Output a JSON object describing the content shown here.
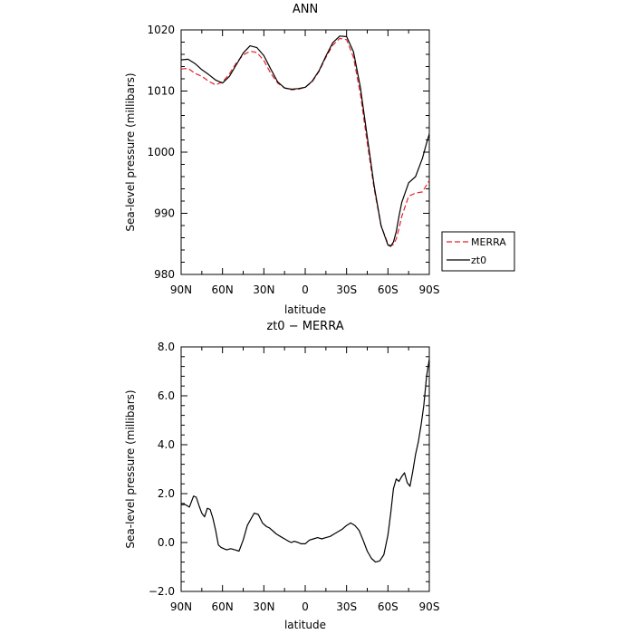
{
  "chart_data": [
    {
      "type": "line",
      "title": "ANN",
      "xlabel": "latitude",
      "ylabel": "Sea-level pressure (millibars)",
      "xlim": [
        90,
        -90
      ],
      "ylim": [
        980,
        1020
      ],
      "x_tick_values": [
        90,
        60,
        30,
        0,
        -30,
        -60,
        -90
      ],
      "x_tick_labels": [
        "90N",
        "60N",
        "30N",
        "0",
        "30S",
        "60S",
        "90S"
      ],
      "y_tick_values": [
        980,
        990,
        1000,
        1010,
        1020
      ],
      "y_tick_labels": [
        "980",
        "990",
        "1000",
        "1010",
        "1020"
      ],
      "legend": "right",
      "series": [
        {
          "name": "MERRA",
          "color": "#e8202a",
          "dash": "dashed",
          "x": [
            90,
            85,
            80,
            75,
            70,
            65,
            60,
            55,
            50,
            45,
            40,
            35,
            30,
            25,
            20,
            15,
            10,
            5,
            0,
            -5,
            -10,
            -15,
            -20,
            -25,
            -30,
            -35,
            -40,
            -45,
            -50,
            -55,
            -60,
            -62,
            -64,
            -66,
            -68,
            -70,
            -75,
            -80,
            -85,
            -90
          ],
          "values": [
            1013.6,
            1013.7,
            1012.9,
            1012.4,
            1011.6,
            1011.0,
            1011.5,
            1012.8,
            1014.6,
            1015.9,
            1016.5,
            1016.3,
            1015.0,
            1012.9,
            1011.3,
            1010.5,
            1010.2,
            1010.3,
            1010.6,
            1011.5,
            1013.2,
            1015.5,
            1017.5,
            1018.6,
            1018.4,
            1015.5,
            1009.5,
            1001.5,
            994.0,
            988.0,
            985.0,
            984.7,
            984.9,
            985.8,
            987.5,
            989.5,
            992.8,
            993.3,
            993.5,
            995.4
          ]
        },
        {
          "name": "zt0",
          "color": "#000000",
          "dash": "solid",
          "x": [
            90,
            85,
            80,
            75,
            70,
            65,
            60,
            55,
            50,
            45,
            40,
            35,
            30,
            25,
            20,
            15,
            10,
            5,
            0,
            -5,
            -10,
            -15,
            -20,
            -25,
            -30,
            -35,
            -40,
            -45,
            -50,
            -55,
            -60,
            -62,
            -64,
            -66,
            -68,
            -70,
            -75,
            -80,
            -85,
            -88,
            -90
          ],
          "values": [
            1015.1,
            1015.2,
            1014.5,
            1013.5,
            1012.7,
            1011.8,
            1011.3,
            1012.4,
            1014.3,
            1016.2,
            1017.4,
            1017.1,
            1015.8,
            1013.6,
            1011.5,
            1010.5,
            1010.3,
            1010.4,
            1010.6,
            1011.6,
            1013.3,
            1015.7,
            1017.9,
            1019.0,
            1018.9,
            1016.4,
            1010.6,
            1002.5,
            994.5,
            988.0,
            984.8,
            984.6,
            985.3,
            987.0,
            989.5,
            991.8,
            995.0,
            996.0,
            999.0,
            1001.5,
            1003.0
          ]
        }
      ]
    },
    {
      "type": "line",
      "title": "zt0 − MERRA",
      "xlabel": "latitude",
      "ylabel": "Sea-level pressure (millibars)",
      "xlim": [
        90,
        -90
      ],
      "ylim": [
        -2,
        8
      ],
      "x_tick_values": [
        90,
        60,
        30,
        0,
        -30,
        -60,
        -90
      ],
      "x_tick_labels": [
        "90N",
        "60N",
        "30N",
        "0",
        "30S",
        "60S",
        "90S"
      ],
      "y_tick_values": [
        -2,
        0,
        2,
        4,
        6,
        8
      ],
      "y_tick_labels": [
        "−2.0",
        "0.0",
        "2.0",
        "4.0",
        "6.0",
        "8.0"
      ],
      "series": [
        {
          "color": "#000000",
          "dash": "solid",
          "x": [
            90,
            87,
            84,
            81,
            79,
            77,
            75,
            73,
            71,
            69,
            67,
            65,
            63,
            61,
            59,
            57,
            54,
            51,
            48,
            45,
            42,
            39,
            37,
            34,
            31,
            28,
            26,
            24,
            21,
            18,
            15,
            12,
            10,
            8,
            5,
            3,
            0,
            -3,
            -6,
            -9,
            -12,
            -15,
            -18,
            -21,
            -24,
            -27,
            -30,
            -33,
            -36,
            -39,
            -42,
            -45,
            -48,
            -51,
            -54,
            -57,
            -60,
            -62,
            -64,
            -66,
            -68,
            -70,
            -72,
            -74,
            -76,
            -78,
            -80,
            -82,
            -84,
            -86,
            -88,
            -90
          ],
          "values": [
            1.55,
            1.55,
            1.45,
            1.9,
            1.85,
            1.5,
            1.2,
            1.05,
            1.4,
            1.35,
            1.0,
            0.5,
            -0.1,
            -0.2,
            -0.25,
            -0.3,
            -0.25,
            -0.3,
            -0.35,
            0.1,
            0.7,
            1.0,
            1.2,
            1.15,
            0.8,
            0.65,
            0.6,
            0.5,
            0.35,
            0.25,
            0.15,
            0.05,
            0.0,
            0.05,
            0.0,
            -0.05,
            -0.05,
            0.1,
            0.15,
            0.2,
            0.15,
            0.2,
            0.25,
            0.35,
            0.45,
            0.55,
            0.7,
            0.8,
            0.7,
            0.5,
            0.1,
            -0.35,
            -0.65,
            -0.8,
            -0.75,
            -0.5,
            0.3,
            1.2,
            2.2,
            2.6,
            2.5,
            2.7,
            2.85,
            2.45,
            2.3,
            2.9,
            3.6,
            4.1,
            4.8,
            5.6,
            6.8,
            7.5
          ]
        }
      ]
    }
  ]
}
